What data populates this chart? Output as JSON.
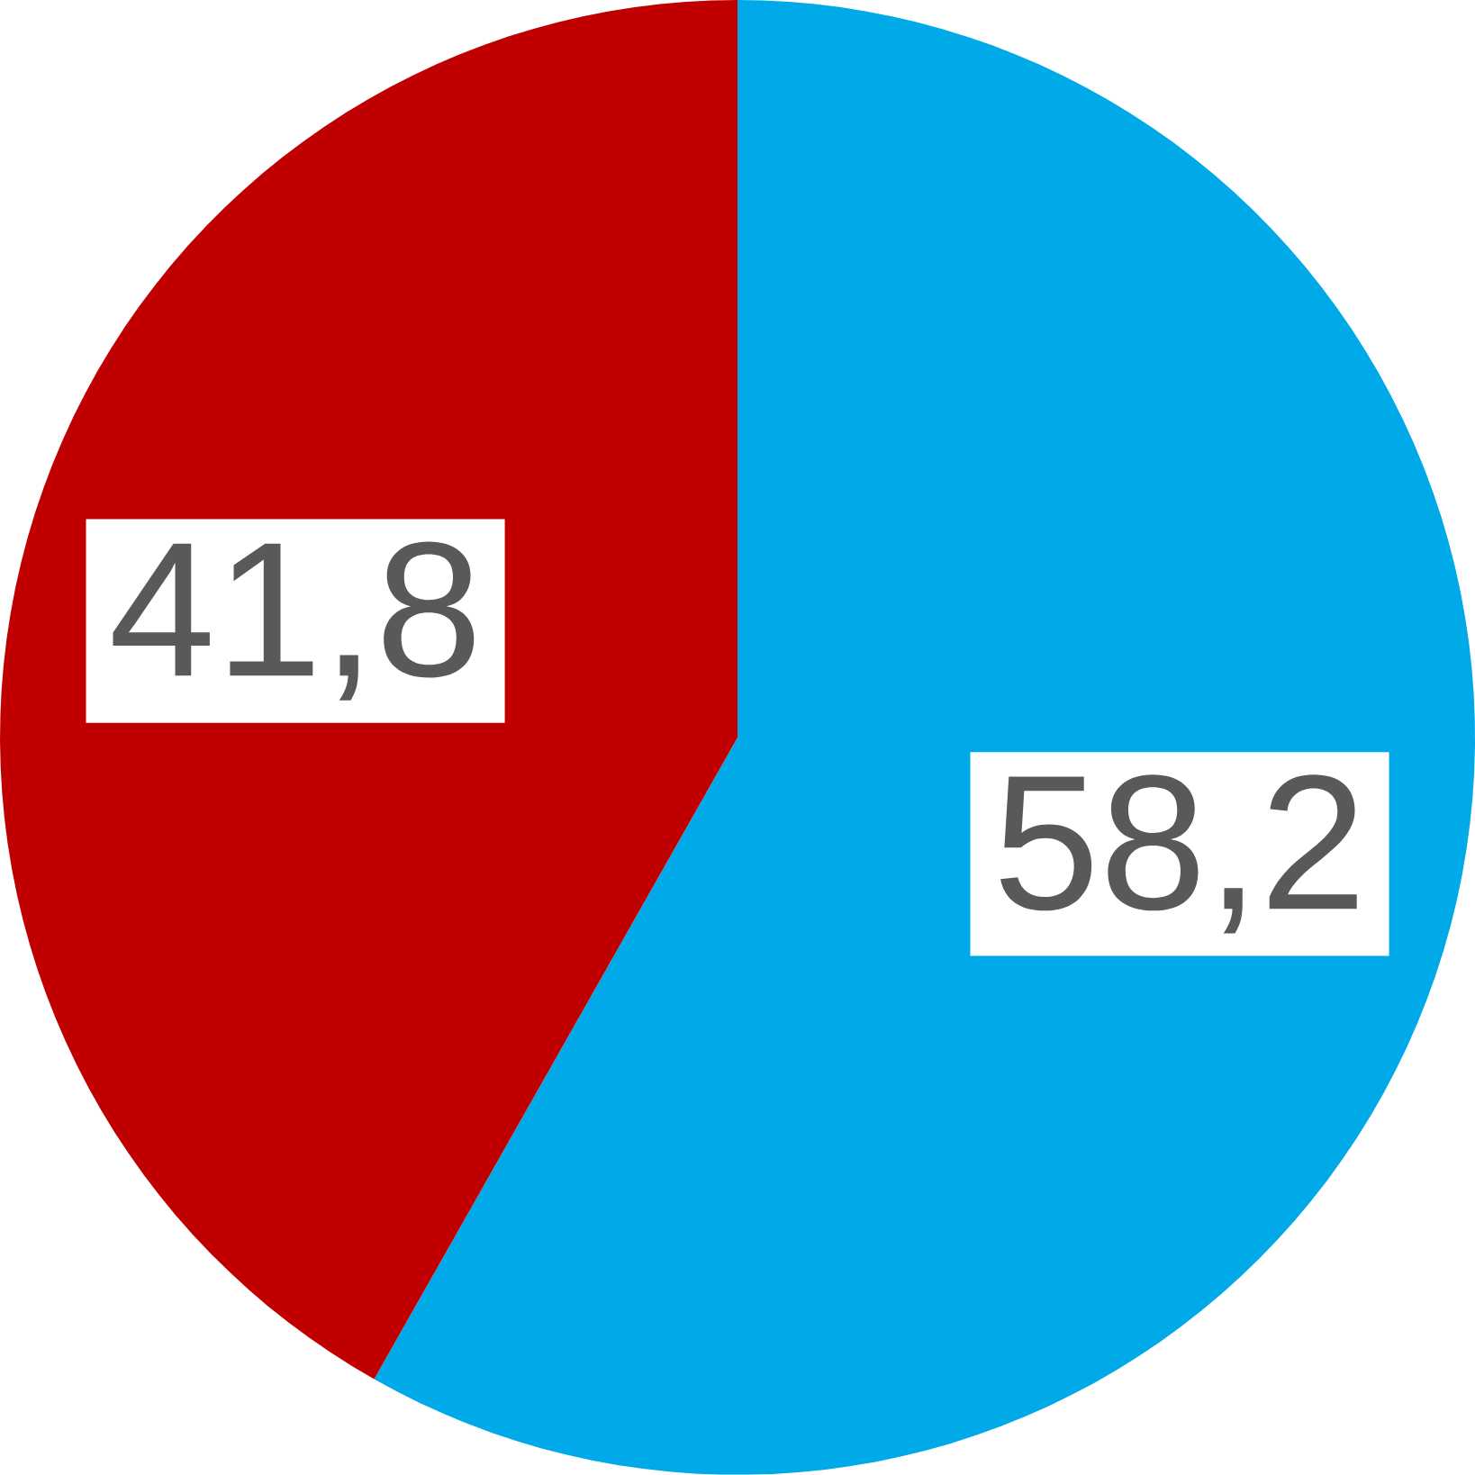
{
  "chart_data": {
    "type": "pie",
    "categories": [
      null,
      null
    ],
    "values": [
      58.2,
      41.8
    ],
    "colors": [
      "#00a9e8",
      "#c00000"
    ],
    "value_labels": [
      "58,2",
      "41,8"
    ]
  }
}
